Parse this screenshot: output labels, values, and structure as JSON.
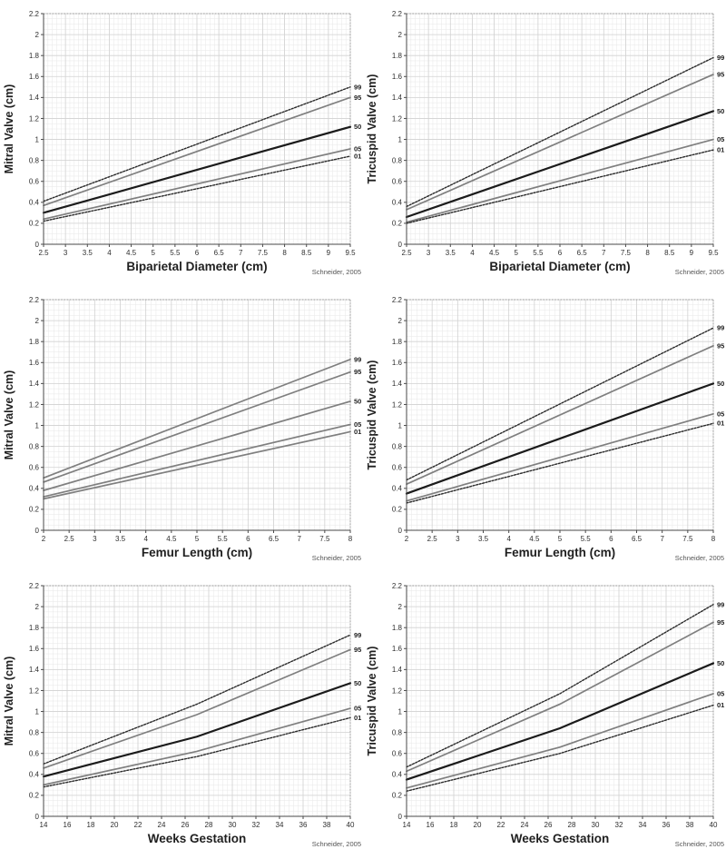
{
  "page": {
    "background": "#ffffff"
  },
  "style_colors": {
    "minor_grid": "#e7e7e7",
    "major_grid": "#d2d2d2",
    "boundary_dotted": "#9a9a9a",
    "spine": "#4a4a4a",
    "tick_label": "#2e2e2e",
    "axis_title": "#1f1f1f",
    "percentile_label": "#1f1f1f",
    "attribution": "#555555",
    "line_solid_gray": "#7f7f7f",
    "line_solid_dark": "#1b1b1b",
    "line_dotted_dark": "#2b2b2b"
  },
  "chart_data": [
    {
      "type": "line",
      "id": "mitral-vs-biparietal",
      "ylabel": "Mitral Valve (cm)",
      "xlabel": "Biparietal Diameter (cm)",
      "attribution": "Schneider, 2005",
      "xlim": [
        2.5,
        9.5
      ],
      "ylim": [
        0,
        2.2
      ],
      "x_ticks": [
        "2.5",
        "3",
        "3.5",
        "4",
        "4.5",
        "5",
        "5.5",
        "6",
        "6.5",
        "7",
        "7.5",
        "8",
        "8.5",
        "9",
        "9.5"
      ],
      "y_ticks": [
        "0",
        "0.2",
        "0.4",
        "0.6",
        "0.8",
        "1",
        "1.2",
        "1.4",
        "1.6",
        "1.8",
        "2",
        "2.2"
      ],
      "grid": "minor+major",
      "legend_position": "line-end-right",
      "x": [
        2.5,
        9.5
      ],
      "series": [
        {
          "name": "99",
          "style": "dotted-dark",
          "values": [
            0.41,
            1.5
          ]
        },
        {
          "name": "95",
          "style": "solid-gray",
          "values": [
            0.37,
            1.4
          ]
        },
        {
          "name": "50",
          "style": "solid-dark",
          "values": [
            0.3,
            1.12
          ]
        },
        {
          "name": "05",
          "style": "solid-gray",
          "values": [
            0.24,
            0.91
          ]
        },
        {
          "name": "01",
          "style": "dotted-dark",
          "values": [
            0.22,
            0.84
          ]
        }
      ]
    },
    {
      "type": "line",
      "id": "tricuspid-vs-biparietal",
      "ylabel": "Tricuspid Valve (cm)",
      "xlabel": "Biparietal Diameter (cm)",
      "attribution": "Schneider, 2005",
      "xlim": [
        2.5,
        9.5
      ],
      "ylim": [
        0,
        2.2
      ],
      "x_ticks": [
        "2.5",
        "3",
        "3.5",
        "4",
        "4.5",
        "5",
        "5.5",
        "6",
        "6.5",
        "7",
        "7.5",
        "8",
        "8.5",
        "9",
        "9.5"
      ],
      "y_ticks": [
        "0",
        "0.2",
        "0.4",
        "0.6",
        "0.8",
        "1",
        "1.2",
        "1.4",
        "1.6",
        "1.8",
        "2",
        "2.2"
      ],
      "grid": "minor+major",
      "legend_position": "line-end-right",
      "x": [
        2.5,
        9.5
      ],
      "series": [
        {
          "name": "99",
          "style": "dotted-dark",
          "values": [
            0.36,
            1.78
          ]
        },
        {
          "name": "95",
          "style": "solid-gray",
          "values": [
            0.33,
            1.62
          ]
        },
        {
          "name": "50",
          "style": "solid-dark",
          "values": [
            0.26,
            1.27
          ]
        },
        {
          "name": "05",
          "style": "solid-gray",
          "values": [
            0.21,
            1.0
          ]
        },
        {
          "name": "01",
          "style": "dotted-dark",
          "values": [
            0.2,
            0.9
          ]
        }
      ]
    },
    {
      "type": "line",
      "id": "mitral-vs-femur",
      "ylabel": "Mitral Valve (cm)",
      "xlabel": "Femur Length (cm)",
      "attribution": "Schneider, 2005",
      "xlim": [
        2,
        8
      ],
      "ylim": [
        0,
        2.2
      ],
      "x_ticks": [
        "2",
        "2.5",
        "3",
        "3.5",
        "4",
        "4.5",
        "5",
        "5.5",
        "6",
        "6.5",
        "7",
        "7.5",
        "8"
      ],
      "y_ticks": [
        "0",
        "0.2",
        "0.4",
        "0.6",
        "0.8",
        "1",
        "1.2",
        "1.4",
        "1.6",
        "1.8",
        "2",
        "2.2"
      ],
      "grid": "minor+major",
      "legend_position": "line-end-right",
      "x": [
        2,
        8
      ],
      "series": [
        {
          "name": "99",
          "style": "solid-gray",
          "values": [
            0.5,
            1.63
          ]
        },
        {
          "name": "95",
          "style": "solid-gray",
          "values": [
            0.46,
            1.51
          ]
        },
        {
          "name": "50",
          "style": "solid-gray",
          "values": [
            0.38,
            1.23
          ]
        },
        {
          "name": "05",
          "style": "solid-gray",
          "values": [
            0.32,
            1.01
          ]
        },
        {
          "name": "01",
          "style": "solid-gray",
          "values": [
            0.3,
            0.94
          ]
        }
      ]
    },
    {
      "type": "line",
      "id": "tricuspid-vs-femur",
      "ylabel": "Tricuspid Valve (cm)",
      "xlabel": "Femur Length (cm)",
      "attribution": "Schneider, 2005",
      "xlim": [
        2,
        8
      ],
      "ylim": [
        0,
        2.2
      ],
      "x_ticks": [
        "2",
        "2.5",
        "3",
        "3.5",
        "4",
        "4.5",
        "5",
        "5.5",
        "6",
        "6.5",
        "7",
        "7.5",
        "8"
      ],
      "y_ticks": [
        "0",
        "0.2",
        "0.4",
        "0.6",
        "0.8",
        "1",
        "1.2",
        "1.4",
        "1.6",
        "1.8",
        "2",
        "2.2"
      ],
      "grid": "minor+major",
      "legend_position": "line-end-right",
      "x": [
        2,
        8
      ],
      "series": [
        {
          "name": "99",
          "style": "dotted-dark",
          "values": [
            0.48,
            1.93
          ]
        },
        {
          "name": "95",
          "style": "solid-gray",
          "values": [
            0.44,
            1.76
          ]
        },
        {
          "name": "50",
          "style": "solid-dark",
          "values": [
            0.35,
            1.4
          ]
        },
        {
          "name": "05",
          "style": "solid-gray",
          "values": [
            0.28,
            1.11
          ]
        },
        {
          "name": "01",
          "style": "dotted-dark",
          "values": [
            0.26,
            1.02
          ]
        }
      ]
    },
    {
      "type": "line",
      "id": "mitral-vs-weeks",
      "ylabel": "Mitral Valve (cm)",
      "xlabel": "Weeks Gestation",
      "attribution": "Schneider, 2005",
      "xlim": [
        14,
        40
      ],
      "ylim": [
        0,
        2.2
      ],
      "x_ticks": [
        "14",
        "16",
        "18",
        "20",
        "22",
        "24",
        "26",
        "28",
        "30",
        "32",
        "34",
        "36",
        "38",
        "40"
      ],
      "y_ticks": [
        "0",
        "0.2",
        "0.4",
        "0.6",
        "0.8",
        "1",
        "1.2",
        "1.4",
        "1.6",
        "1.8",
        "2",
        "2.2"
      ],
      "grid": "minor+major",
      "legend_position": "line-end-right",
      "x": [
        14,
        27,
        40
      ],
      "series": [
        {
          "name": "99",
          "style": "dotted-dark",
          "values": [
            0.5,
            1.07,
            1.73
          ]
        },
        {
          "name": "95",
          "style": "solid-gray",
          "values": [
            0.46,
            0.97,
            1.59
          ]
        },
        {
          "name": "50",
          "style": "solid-dark",
          "values": [
            0.38,
            0.76,
            1.27
          ]
        },
        {
          "name": "05",
          "style": "solid-gray",
          "values": [
            0.3,
            0.62,
            1.03
          ]
        },
        {
          "name": "01",
          "style": "dotted-dark",
          "values": [
            0.28,
            0.57,
            0.94
          ]
        }
      ]
    },
    {
      "type": "line",
      "id": "tricuspid-vs-weeks",
      "ylabel": "Tricuspid Valve (cm)",
      "xlabel": "Weeks Gestation",
      "attribution": "Schneider, 2005",
      "xlim": [
        14,
        40
      ],
      "ylim": [
        0,
        2.2
      ],
      "x_ticks": [
        "14",
        "16",
        "18",
        "20",
        "22",
        "24",
        "26",
        "28",
        "30",
        "32",
        "34",
        "36",
        "38",
        "40"
      ],
      "y_ticks": [
        "0",
        "0.2",
        "0.4",
        "0.6",
        "0.8",
        "1",
        "1.2",
        "1.4",
        "1.6",
        "1.8",
        "2",
        "2.2"
      ],
      "grid": "minor+major",
      "legend_position": "line-end-right",
      "x": [
        14,
        27,
        40
      ],
      "series": [
        {
          "name": "99",
          "style": "dotted-dark",
          "values": [
            0.47,
            1.17,
            2.02
          ]
        },
        {
          "name": "95",
          "style": "solid-gray",
          "values": [
            0.43,
            1.07,
            1.85
          ]
        },
        {
          "name": "50",
          "style": "solid-dark",
          "values": [
            0.35,
            0.84,
            1.46
          ]
        },
        {
          "name": "05",
          "style": "solid-gray",
          "values": [
            0.27,
            0.66,
            1.17
          ]
        },
        {
          "name": "01",
          "style": "dotted-dark",
          "values": [
            0.24,
            0.6,
            1.06
          ]
        }
      ]
    }
  ]
}
